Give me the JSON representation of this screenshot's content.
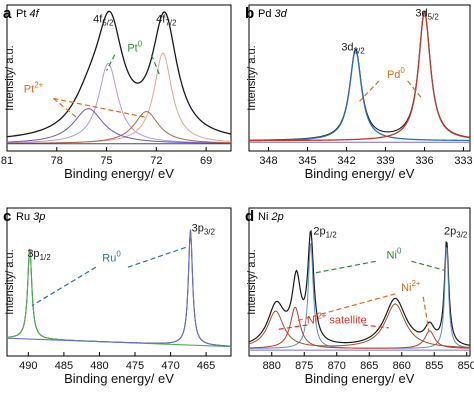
{
  "figure_type": "four-panel XPS spectra",
  "chart_data": [
    {
      "panel_letter": "a",
      "panel_title": {
        "main": "Pt ",
        "italic": "4f"
      },
      "type": "line",
      "xlabel": "Binding energy/ eV",
      "ylabel": "Intensity/ a.u.",
      "x_reversed": true,
      "xlim": [
        81,
        67.5
      ],
      "xticks": [
        81,
        78,
        75,
        72,
        69
      ],
      "ylim": [
        0,
        1
      ],
      "grid": false,
      "series": [
        {
          "color": "#1a1a1a",
          "width": 1.3,
          "baseline": 0.06,
          "slope": 0.0,
          "peaks": [
            [
              74.8,
              0.72,
              0.95
            ],
            [
              71.5,
              0.82,
              0.9
            ],
            [
              76.0,
              0.22,
              1.3
            ]
          ]
        },
        {
          "color": "#b79ad6",
          "width": 1.0,
          "baseline": 0.05,
          "slope": 0.0,
          "peaks": [
            [
              74.9,
              0.55,
              0.7
            ]
          ]
        },
        {
          "color": "#e3a49a",
          "width": 1.0,
          "baseline": 0.05,
          "slope": 0.0,
          "peaks": [
            [
              71.6,
              0.62,
              0.65
            ]
          ]
        },
        {
          "color": "#6a5bbd",
          "width": 1.0,
          "baseline": 0.05,
          "slope": 0.0,
          "peaks": [
            [
              76.1,
              0.24,
              1.1
            ]
          ]
        },
        {
          "color": "#a86a4e",
          "width": 1.0,
          "baseline": 0.05,
          "slope": 0.0,
          "peaks": [
            [
              72.6,
              0.22,
              0.9
            ]
          ]
        },
        {
          "color": "#3a3ac0",
          "width": 1.0,
          "baseline": 0.05,
          "slope": 0.0,
          "peaks": []
        }
      ],
      "peak_labels": [
        {
          "text": "4f",
          "sub": "5/2",
          "x": 75.2,
          "y": 0.88,
          "color": "#1a1a1a"
        },
        {
          "text": "4f",
          "sub": "7/2",
          "x": 71.4,
          "y": 0.88,
          "color": "#1a1a1a"
        }
      ],
      "species_labels": [
        {
          "text": "Pt",
          "sup": "0",
          "x": 73.3,
          "y": 0.68,
          "color": "#2f8f2f",
          "leaders": [
            [
              74.5,
              0.66,
              75.0,
              0.55
            ],
            [
              72.3,
              0.66,
              71.8,
              0.52
            ]
          ]
        },
        {
          "text": "Pt",
          "sup": "2+",
          "x": 79.4,
          "y": 0.4,
          "color": "#e06a1e",
          "leaders": [
            [
              78.2,
              0.36,
              76.7,
              0.22
            ],
            [
              78.2,
              0.36,
              72.6,
              0.23
            ]
          ]
        }
      ]
    },
    {
      "panel_letter": "b",
      "panel_title": {
        "main": "Pd ",
        "italic": "3d"
      },
      "type": "line",
      "xlabel": "Binding energy/ eV",
      "ylabel": "Intensity/ a.u.",
      "x_reversed": true,
      "xlim": [
        349.5,
        332.5
      ],
      "xticks": [
        348,
        345,
        342,
        339,
        336,
        333
      ],
      "ylim": [
        0,
        1
      ],
      "grid": false,
      "series": [
        {
          "color": "#1a1a1a",
          "width": 1.1,
          "baseline": 0.07,
          "slope": 0.0,
          "peaks": [
            [
              341.3,
              0.62,
              0.55
            ],
            [
              336.0,
              0.88,
              0.55
            ]
          ]
        },
        {
          "color": "#2e6fb5",
          "width": 1.3,
          "baseline": 0.07,
          "slope": 0.0,
          "peaks": [
            [
              341.3,
              0.62,
              0.55
            ]
          ]
        },
        {
          "color": "#c0392b",
          "width": 1.3,
          "baseline": 0.07,
          "slope": 0.0,
          "peaks": [
            [
              336.0,
              0.88,
              0.55
            ]
          ]
        },
        {
          "color": "#7b6cc7",
          "width": 1.0,
          "baseline": 0.06,
          "slope": 0.0,
          "peaks": []
        }
      ],
      "peak_labels": [
        {
          "text": "3d",
          "sub": "3/2",
          "x": 341.5,
          "y": 0.69,
          "color": "#1a1a1a"
        },
        {
          "text": "3d",
          "sub": "5/2",
          "x": 335.8,
          "y": 0.92,
          "color": "#1a1a1a"
        }
      ],
      "species_labels": [
        {
          "text": "Pd",
          "sup": "0",
          "x": 338.2,
          "y": 0.5,
          "color": "#e06a1e",
          "leaders": [
            [
              339.5,
              0.48,
              341.0,
              0.34
            ],
            [
              337.3,
              0.48,
              336.2,
              0.36
            ]
          ]
        }
      ]
    },
    {
      "panel_letter": "c",
      "panel_title": {
        "main": "Ru ",
        "italic": "3p"
      },
      "type": "line",
      "xlabel": "Binding energy/ eV",
      "ylabel": "Intensity/ a.u.",
      "x_reversed": true,
      "xlim": [
        493,
        461.5
      ],
      "xticks": [
        490,
        485,
        480,
        475,
        470,
        465
      ],
      "ylim": [
        0,
        1
      ],
      "grid": false,
      "series": [
        {
          "color": "#1a1a1a",
          "width": 1.0,
          "baseline": 0.12,
          "slope": -0.0018,
          "peaks": [
            [
              489.8,
              0.62,
              0.35
            ],
            [
              467.2,
              0.78,
              0.35
            ]
          ]
        },
        {
          "color": "#4caf50",
          "width": 1.1,
          "baseline": 0.12,
          "slope": -0.0018,
          "peaks": [
            [
              489.8,
              0.62,
              0.35
            ]
          ]
        },
        {
          "color": "#6a6fc8",
          "width": 1.1,
          "baseline": 0.12,
          "slope": -0.0018,
          "peaks": [
            [
              467.2,
              0.78,
              0.35
            ]
          ]
        }
      ],
      "peak_labels": [
        {
          "text": "3p",
          "sub": "1/2",
          "x": 488.5,
          "y": 0.67,
          "color": "#1a1a1a"
        },
        {
          "text": "3p",
          "sub": "3/2",
          "x": 465.4,
          "y": 0.84,
          "color": "#1a1a1a"
        }
      ],
      "species_labels": [
        {
          "text": "Ru",
          "sup": "0",
          "x": 478.3,
          "y": 0.64,
          "color": "#2e6fb5",
          "leaders": [
            [
              480.5,
              0.6,
              489.5,
              0.34
            ],
            [
              476.0,
              0.6,
              467.5,
              0.74
            ]
          ]
        }
      ]
    },
    {
      "panel_letter": "d",
      "panel_title": {
        "main": "Ni ",
        "italic": "2p"
      },
      "type": "line",
      "xlabel": "Binding energy/ eV",
      "ylabel": "Intensity/ a.u.",
      "x_reversed": true,
      "xlim": [
        883.5,
        849.5
      ],
      "xticks": [
        880,
        875,
        870,
        865,
        860,
        855,
        850
      ],
      "ylim": [
        0,
        1
      ],
      "grid": false,
      "series": [
        {
          "color": "#1a1a1a",
          "width": 1.2,
          "baseline": 0.05,
          "slope": 0.0,
          "peaks": [
            [
              874.0,
              0.72,
              0.55
            ],
            [
              876.2,
              0.42,
              0.8
            ],
            [
              879.3,
              0.28,
              1.6
            ],
            [
              861.0,
              0.33,
              2.0
            ],
            [
              855.7,
              0.12,
              0.9
            ],
            [
              853.1,
              0.7,
              0.4
            ]
          ]
        },
        {
          "color": "#5f8fc6",
          "width": 1.0,
          "baseline": 0.05,
          "slope": 0.0,
          "peaks": [
            [
              874.0,
              0.72,
              0.45
            ],
            [
              853.1,
              0.7,
              0.35
            ]
          ]
        },
        {
          "color": "#c0392b",
          "width": 1.0,
          "baseline": 0.05,
          "slope": 0.0,
          "peaks": [
            [
              876.4,
              0.28,
              0.9
            ],
            [
              855.7,
              0.12,
              0.9
            ]
          ]
        },
        {
          "color": "#a0522d",
          "width": 1.0,
          "baseline": 0.05,
          "slope": 0.0,
          "peaks": [
            [
              879.4,
              0.25,
              1.5
            ],
            [
              861.0,
              0.3,
              1.9
            ]
          ]
        },
        {
          "color": "#7b6cc7",
          "width": 1.0,
          "baseline": 0.04,
          "slope": 0.0,
          "peaks": []
        }
      ],
      "peak_labels": [
        {
          "text": "2p",
          "sub": "1/2",
          "x": 871.8,
          "y": 0.82,
          "color": "#1a1a1a"
        },
        {
          "text": "2p",
          "sub": "3/2",
          "x": 851.7,
          "y": 0.82,
          "color": "#1a1a1a"
        }
      ],
      "species_labels": [
        {
          "text": "Ni",
          "sup": "0",
          "x": 861.2,
          "y": 0.66,
          "color": "#2f8f2f",
          "leaders": [
            [
              864.0,
              0.64,
              873.5,
              0.56
            ],
            [
              858.5,
              0.64,
              853.5,
              0.58
            ]
          ]
        },
        {
          "text": "Ni",
          "sup": "2+",
          "x": 858.6,
          "y": 0.44,
          "color": "#e06a1e",
          "leaders": [
            [
              861.0,
              0.42,
              876.0,
              0.24
            ],
            [
              856.7,
              0.4,
              855.8,
              0.16
            ]
          ]
        },
        {
          "text": "Ni",
          "sup": "2+",
          "tail": " satellite",
          "x": 870.0,
          "y": 0.22,
          "color": "#d93a2b",
          "leaders": [
            [
              874.5,
              0.21,
              879.0,
              0.18
            ],
            [
              866.0,
              0.21,
              862.0,
              0.19
            ]
          ]
        }
      ]
    }
  ]
}
